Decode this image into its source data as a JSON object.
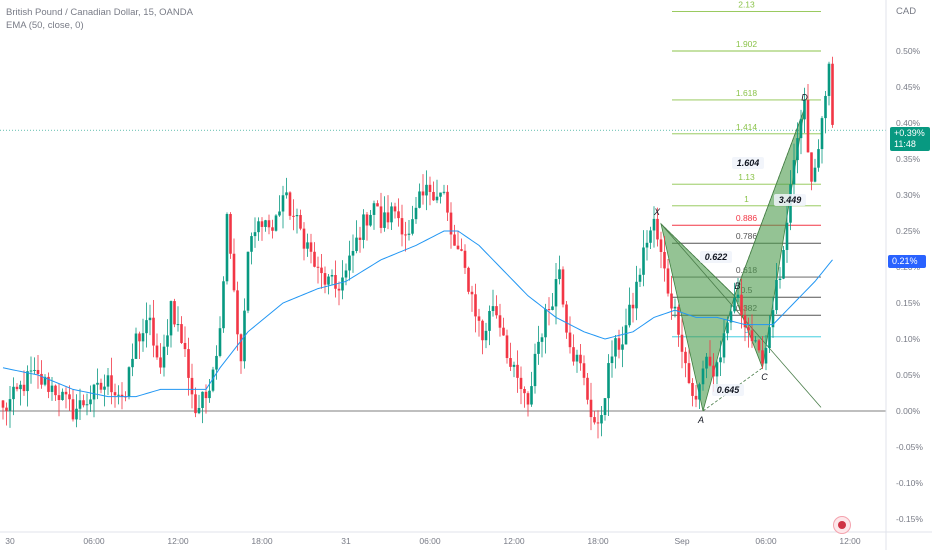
{
  "legend": {
    "symbol_line": "British Pound / Canadian Dollar, 15, OANDA",
    "indicator_line": "EMA (50, close, 0)"
  },
  "currency_label": "CAD",
  "current_tag": {
    "pct": "+0.39%",
    "countdown": "11:48"
  },
  "ema_tag": {
    "pct": "0.21%"
  },
  "colors": {
    "up": "#089981",
    "down": "#f23645",
    "ema": "#2196f3",
    "pattern_fill": "#4c9b4c",
    "fib_line": "#8bc34a",
    "fib_red": "#f23645",
    "text_grey": "#787b86"
  },
  "chart_data": {
    "type": "candlestick",
    "title": "British Pound / Canadian Dollar, 15, OANDA",
    "indicator": "EMA (50, close, 0)",
    "y_axis_unit": "%",
    "ylim": [
      -0.15,
      0.55
    ],
    "y_ticks": [
      "0.50%",
      "0.45%",
      "0.40%",
      "0.35%",
      "0.30%",
      "0.25%",
      "0.20%",
      "0.15%",
      "0.10%",
      "0.05%",
      "0.00%",
      "-0.05%",
      "-0.10%",
      "-0.15%"
    ],
    "y_tick_values": [
      0.5,
      0.45,
      0.4,
      0.35,
      0.3,
      0.25,
      0.2,
      0.15,
      0.1,
      0.05,
      0.0,
      -0.05,
      -0.1,
      -0.15
    ],
    "x_ticks": [
      {
        "label": "30",
        "bar": 2
      },
      {
        "label": "06:00",
        "bar": 26
      },
      {
        "label": "12:00",
        "bar": 50
      },
      {
        "label": "18:00",
        "bar": 74
      },
      {
        "label": "31",
        "bar": 98
      },
      {
        "label": "06:00",
        "bar": 122
      },
      {
        "label": "12:00",
        "bar": 146
      },
      {
        "label": "18:00",
        "bar": 170
      },
      {
        "label": "Sep",
        "bar": 194
      },
      {
        "label": "06:00",
        "bar": 218
      },
      {
        "label": "12:00",
        "bar": 242
      }
    ],
    "close_pct_keypoints": [
      [
        0,
        0.0
      ],
      [
        8,
        0.05
      ],
      [
        15,
        0.03
      ],
      [
        20,
        0.0
      ],
      [
        25,
        0.02
      ],
      [
        30,
        0.04
      ],
      [
        35,
        0.02
      ],
      [
        38,
        0.1
      ],
      [
        42,
        0.12
      ],
      [
        45,
        0.05
      ],
      [
        48,
        0.15
      ],
      [
        52,
        0.08
      ],
      [
        55,
        0.0
      ],
      [
        58,
        0.02
      ],
      [
        62,
        0.11
      ],
      [
        64,
        0.28
      ],
      [
        66,
        0.17
      ],
      [
        68,
        0.06
      ],
      [
        70,
        0.22
      ],
      [
        74,
        0.27
      ],
      [
        77,
        0.25
      ],
      [
        80,
        0.3
      ],
      [
        83,
        0.27
      ],
      [
        87,
        0.23
      ],
      [
        90,
        0.19
      ],
      [
        95,
        0.17
      ],
      [
        98,
        0.19
      ],
      [
        102,
        0.25
      ],
      [
        106,
        0.29
      ],
      [
        108,
        0.26
      ],
      [
        112,
        0.28
      ],
      [
        116,
        0.24
      ],
      [
        119,
        0.29
      ],
      [
        122,
        0.31
      ],
      [
        126,
        0.3
      ],
      [
        128,
        0.24
      ],
      [
        131,
        0.21
      ],
      [
        134,
        0.16
      ],
      [
        137,
        0.1
      ],
      [
        140,
        0.15
      ],
      [
        143,
        0.11
      ],
      [
        145,
        0.06
      ],
      [
        148,
        0.03
      ],
      [
        150,
        0.0
      ],
      [
        152,
        0.08
      ],
      [
        155,
        0.13
      ],
      [
        157,
        0.16
      ],
      [
        159,
        0.2
      ],
      [
        161,
        0.12
      ],
      [
        163,
        0.08
      ],
      [
        165,
        0.06
      ],
      [
        168,
        0.0
      ],
      [
        170,
        -0.03
      ],
      [
        172,
        0.03
      ],
      [
        174,
        0.08
      ],
      [
        177,
        0.1
      ],
      [
        180,
        0.15
      ],
      [
        184,
        0.24
      ],
      [
        186,
        0.26
      ],
      [
        190,
        0.17
      ],
      [
        193,
        0.12
      ],
      [
        196,
        0.04
      ],
      [
        198,
        0.01
      ],
      [
        201,
        0.08
      ],
      [
        203,
        0.05
      ],
      [
        205,
        0.08
      ],
      [
        207,
        0.11
      ],
      [
        209,
        0.16
      ],
      [
        212,
        0.13
      ],
      [
        214,
        0.1
      ],
      [
        216,
        0.07
      ],
      [
        218,
        0.09
      ],
      [
        220,
        0.15
      ],
      [
        223,
        0.21
      ],
      [
        225,
        0.3
      ],
      [
        227,
        0.38
      ],
      [
        229,
        0.42
      ],
      [
        231,
        0.31
      ],
      [
        233,
        0.36
      ],
      [
        235,
        0.45
      ],
      [
        236,
        0.47
      ],
      [
        237,
        0.39
      ]
    ],
    "ema_pct_keypoints": [
      [
        0,
        0.06
      ],
      [
        10,
        0.05
      ],
      [
        20,
        0.03
      ],
      [
        30,
        0.02
      ],
      [
        38,
        0.02
      ],
      [
        45,
        0.03
      ],
      [
        52,
        0.03
      ],
      [
        58,
        0.03
      ],
      [
        62,
        0.06
      ],
      [
        70,
        0.11
      ],
      [
        80,
        0.15
      ],
      [
        90,
        0.17
      ],
      [
        98,
        0.18
      ],
      [
        108,
        0.21
      ],
      [
        118,
        0.23
      ],
      [
        126,
        0.25
      ],
      [
        130,
        0.25
      ],
      [
        136,
        0.23
      ],
      [
        142,
        0.2
      ],
      [
        150,
        0.16
      ],
      [
        158,
        0.13
      ],
      [
        166,
        0.11
      ],
      [
        172,
        0.1
      ],
      [
        180,
        0.11
      ],
      [
        186,
        0.13
      ],
      [
        192,
        0.14
      ],
      [
        198,
        0.13
      ],
      [
        204,
        0.13
      ],
      [
        212,
        0.12
      ],
      [
        220,
        0.12
      ],
      [
        226,
        0.15
      ],
      [
        232,
        0.18
      ],
      [
        237,
        0.21
      ]
    ],
    "current_price_line_pct": 0.39,
    "pattern": {
      "points": [
        {
          "label": "X",
          "bar": 188,
          "pct": 0.26
        },
        {
          "label": "A",
          "bar": 200,
          "pct": 0.0
        },
        {
          "label": "B",
          "bar": 209,
          "pct": 0.16
        },
        {
          "label": "C",
          "bar": 217,
          "pct": 0.06
        },
        {
          "label": "D",
          "bar": 229,
          "pct": 0.42
        }
      ],
      "ratios": [
        {
          "text": "0.622",
          "between": "XB"
        },
        {
          "text": "0.645",
          "between": "AC"
        },
        {
          "text": "3.449",
          "between": "BD"
        },
        {
          "text": "1.604",
          "between": "XD"
        }
      ]
    },
    "fib_levels": [
      {
        "label": "2.13",
        "pct": 0.555,
        "color": "green"
      },
      {
        "label": "1.902",
        "pct": 0.5,
        "color": "green"
      },
      {
        "label": "1.618",
        "pct": 0.432,
        "color": "green"
      },
      {
        "label": "1.414",
        "pct": 0.385,
        "color": "green"
      },
      {
        "label": "1.13",
        "pct": 0.315,
        "color": "green"
      },
      {
        "label": "1",
        "pct": 0.285,
        "color": "green"
      },
      {
        "label": "0.886",
        "pct": 0.258,
        "color": "red"
      },
      {
        "label": "0.786",
        "pct": 0.233,
        "color": "dark"
      },
      {
        "label": "0.618",
        "pct": 0.186,
        "color": "dark"
      },
      {
        "label": "0.5",
        "pct": 0.158,
        "color": "dark"
      },
      {
        "label": "0.382",
        "pct": 0.133,
        "color": "dark"
      },
      {
        "label": "0",
        "pct": 0.103,
        "color": "teal"
      }
    ],
    "level_line_pct": 0.0,
    "grid": false
  }
}
